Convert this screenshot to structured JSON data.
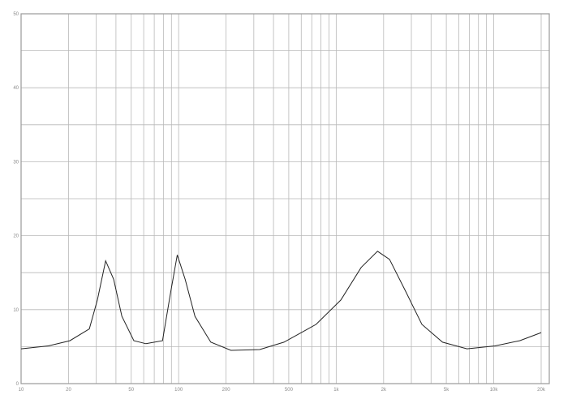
{
  "chart_data": {
    "type": "line",
    "title": "",
    "xlabel": "",
    "ylabel": "",
    "x_scale": "log",
    "xlim": [
      10,
      20000
    ],
    "ylim": [
      0,
      50
    ],
    "grid": true,
    "x_ticks": [
      10,
      20,
      50,
      100,
      200,
      500,
      1000,
      2000,
      5000,
      10000,
      20000
    ],
    "x_tick_labels": [
      "10",
      "20",
      "50",
      "100",
      "200",
      "500",
      "1k",
      "2k",
      "5k",
      "10k",
      "20k"
    ],
    "y_ticks": [
      0,
      10,
      20,
      30,
      40,
      50
    ],
    "y_tick_labels": [
      "0",
      "10",
      "20",
      "30",
      "40",
      "50"
    ],
    "line_color": "#222222",
    "grid_color": "#b8b8b8",
    "series": [
      {
        "x": [
          10,
          14.9,
          20.4,
          27.1,
          30.5,
          34.4,
          38.7,
          43.6,
          52,
          62,
          79,
          89,
          98,
          110,
          127,
          160,
          215,
          327,
          466,
          745,
          1070,
          1440,
          1830,
          2180,
          2770,
          3500,
          4730,
          6770,
          10200,
          14600,
          20000
        ],
        "y": [
          4.7,
          5.1,
          5.8,
          7.4,
          11.3,
          16.6,
          14.1,
          9.1,
          5.8,
          5.4,
          5.8,
          12.4,
          17.4,
          14.1,
          9.1,
          5.6,
          4.5,
          4.6,
          5.6,
          8.0,
          11.3,
          15.7,
          17.9,
          16.8,
          12.4,
          8.0,
          5.6,
          4.7,
          5.1,
          5.8,
          6.9
        ]
      }
    ]
  }
}
